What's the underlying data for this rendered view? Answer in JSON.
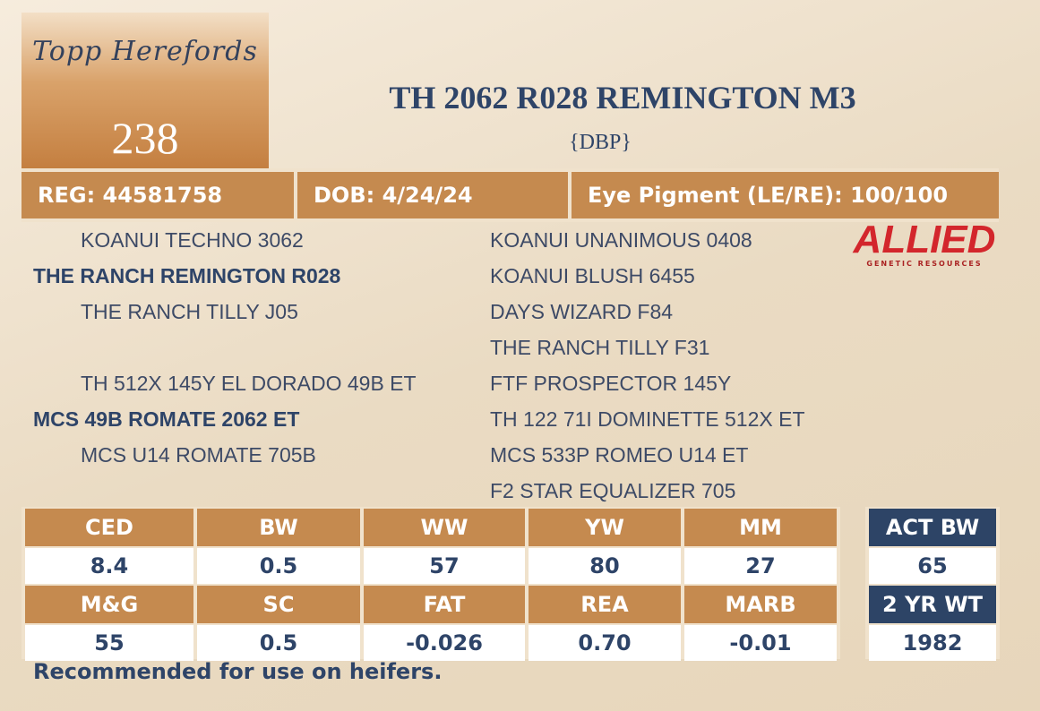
{
  "logo": {
    "text": "Topp Herefords"
  },
  "lot": "238",
  "title": "TH 2062 R028 REMINGTON M3",
  "subtitle": "{DBP}",
  "info": [
    "REG: 44581758",
    "DOB: 4/24/24",
    "Eye Pigment (LE/RE): 100/100"
  ],
  "sponsor": {
    "name": "ALLIED",
    "tagline": "GENETIC RESOURCES"
  },
  "pedigree": {
    "left": [
      {
        "text": "KOANUI TECHNO 3062",
        "bold": false
      },
      {
        "text": "THE RANCH REMINGTON R028",
        "bold": true
      },
      {
        "text": "THE RANCH TILLY J05",
        "bold": false
      },
      null,
      {
        "text": "TH 512X 145Y EL DORADO 49B ET",
        "bold": false
      },
      {
        "text": "MCS 49B ROMATE 2062 ET",
        "bold": true
      },
      {
        "text": "MCS U14 ROMATE 705B",
        "bold": false
      }
    ],
    "right": [
      "KOANUI UNANIMOUS 0408",
      "KOANUI BLUSH 6455",
      "DAYS WIZARD F84",
      "THE RANCH TILLY F31",
      "FTF PROSPECTOR 145Y",
      "TH 122 71I DOMINETTE 512X ET",
      "MCS 533P ROMEO U14 ET",
      "F2 STAR EQUALIZER 705"
    ]
  },
  "epd": {
    "rows": [
      {
        "headers": [
          "CED",
          "BW",
          "WW",
          "YW",
          "MM"
        ],
        "values": [
          "8.4",
          "0.5",
          "57",
          "80",
          "27"
        ]
      },
      {
        "headers": [
          "M&G",
          "SC",
          "FAT",
          "REA",
          "MARB"
        ],
        "values": [
          "55",
          "0.5",
          "-0.026",
          "0.70",
          "-0.01"
        ]
      }
    ],
    "actual": [
      {
        "header": "ACT BW",
        "value": "65"
      },
      {
        "header": "2 YR WT",
        "value": "1982"
      }
    ]
  },
  "note": "Recommended for use on heifers."
}
